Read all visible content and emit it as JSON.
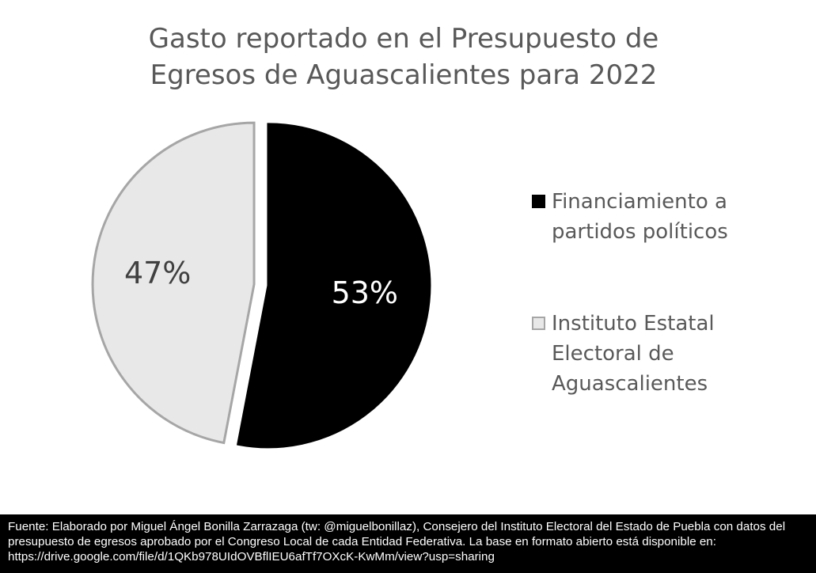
{
  "chart_data": {
    "type": "pie",
    "title": "Gasto reportado en el Presupuesto de Egresos de Aguascalientes para 2022",
    "categories": [
      "Financiamiento a partidos políticos",
      "Instituto Estatal Electoral de Aguascalientes"
    ],
    "values": [
      53,
      47
    ],
    "value_labels": [
      "53%",
      "47%"
    ],
    "colors": [
      "#000000",
      "#e8e8e8"
    ],
    "edgecolors": [
      "#000000",
      "#a6a6a6"
    ],
    "label_colors": [
      "#ffffff",
      "#404040"
    ],
    "legend": "right"
  },
  "footer": "Fuente: Elaborado por Miguel Ángel Bonilla Zarrazaga (tw: @miguelbonillaz), Consejero del Instituto Electoral del Estado de Puebla con datos del presupuesto de egresos aprobado por el Congreso Local de cada Entidad Federativa. La base en formato abierto está disponible en: https://drive.google.com/file/d/1QKb978UIdOVBflIEU6afTf7OXcK-KwMm/view?usp=sharing"
}
